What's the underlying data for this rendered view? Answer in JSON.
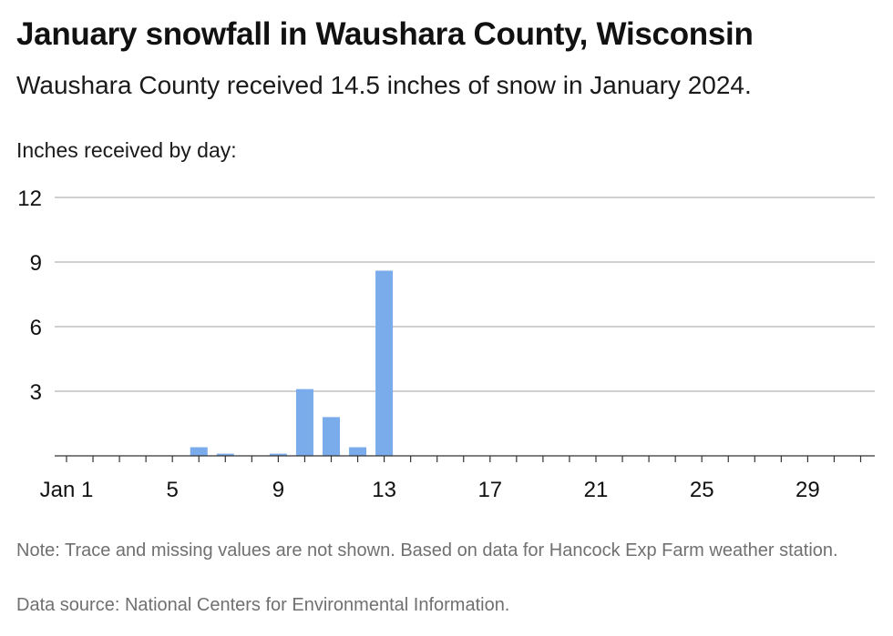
{
  "header": {
    "title": "January snowfall in Waushara County, Wisconsin",
    "subtitle": "Waushara County received 14.5 inches of snow in January 2024."
  },
  "footer": {
    "note": "Note: Trace and missing values are not shown. Based on data for Hancock Exp Farm weather station.",
    "source": "Data source: National Centers for Environmental Information."
  },
  "colors": {
    "bar": "#7aacec",
    "grid": "#b5b5b5",
    "axis": "#333333",
    "text": "#111111",
    "muted": "#707070"
  },
  "chart_data": {
    "type": "bar",
    "ylabel": "Inches received by day:",
    "xlabel": "",
    "grid": true,
    "ylim": [
      0,
      12
    ],
    "yticks": [
      3,
      6,
      9,
      12
    ],
    "xtick_labels": [
      {
        "day": 1,
        "label": "Jan 1"
      },
      {
        "day": 5,
        "label": "5"
      },
      {
        "day": 9,
        "label": "9"
      },
      {
        "day": 13,
        "label": "13"
      },
      {
        "day": 17,
        "label": "17"
      },
      {
        "day": 21,
        "label": "21"
      },
      {
        "day": 25,
        "label": "25"
      },
      {
        "day": 29,
        "label": "29"
      }
    ],
    "days": [
      1,
      2,
      3,
      4,
      5,
      6,
      7,
      8,
      9,
      10,
      11,
      12,
      13,
      14,
      15,
      16,
      17,
      18,
      19,
      20,
      21,
      22,
      23,
      24,
      25,
      26,
      27,
      28,
      29,
      30,
      31
    ],
    "values": [
      null,
      null,
      null,
      null,
      null,
      0.4,
      0.1,
      null,
      0.1,
      3.1,
      1.8,
      0.4,
      8.6,
      null,
      null,
      null,
      null,
      null,
      null,
      null,
      null,
      null,
      null,
      null,
      null,
      null,
      null,
      null,
      null,
      null,
      null
    ]
  }
}
